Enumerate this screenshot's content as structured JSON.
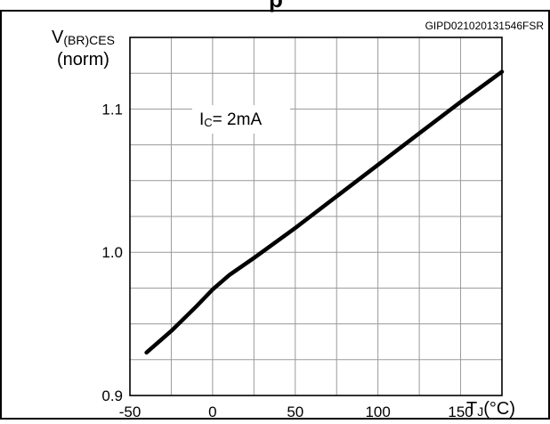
{
  "header_fragment": "p",
  "figure_code": "GIPD021020131546FSR",
  "chart_data": {
    "type": "line",
    "title": "",
    "ylabel_main": "V",
    "ylabel_sub": "(BR)CES",
    "ylabel_norm": "(norm)",
    "xlabel_main": "T",
    "xlabel_sub": "J",
    "xlabel_unit": "(°C)",
    "annotation_main": "I",
    "annotation_sub": "C",
    "annotation_value": "= 2mA",
    "xlim": [
      -50,
      175
    ],
    "ylim": [
      0.9,
      1.15
    ],
    "x_ticks": [
      -50,
      0,
      50,
      100,
      150
    ],
    "x_tick_labels": [
      "-50",
      "0",
      "50",
      "100",
      "150"
    ],
    "y_ticks": [
      0.9,
      1.0,
      1.1
    ],
    "y_tick_labels": [
      "0.9",
      "1.0",
      "1.1"
    ],
    "x_minor_step": 25,
    "y_minor_step": 0.025,
    "grid": true,
    "series": [
      {
        "x": [
          -40,
          -25,
          -10,
          0,
          10,
          25,
          50,
          75,
          100,
          125,
          150,
          175
        ],
        "y": [
          0.93,
          0.945,
          0.962,
          0.974,
          0.984,
          0.996,
          1.017,
          1.039,
          1.061,
          1.083,
          1.105,
          1.126
        ]
      }
    ]
  }
}
